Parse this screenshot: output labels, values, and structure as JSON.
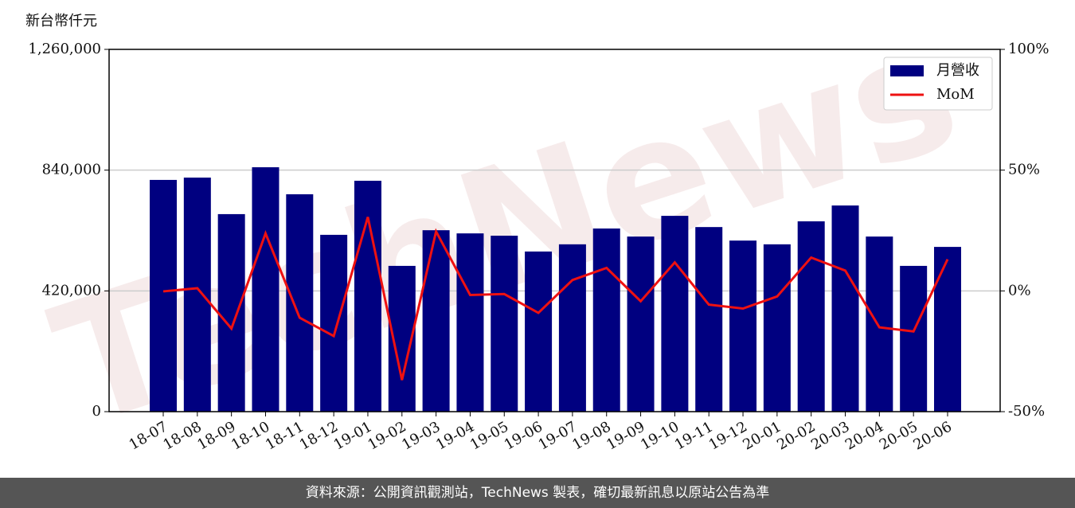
{
  "chart_data": {
    "type": "bar-line",
    "y_axis_label": "新台幣仟元",
    "watermark": "TechNews",
    "categories": [
      "18-07",
      "18-08",
      "18-09",
      "18-10",
      "18-11",
      "18-12",
      "19-01",
      "19-02",
      "19-03",
      "19-04",
      "19-05",
      "19-06",
      "19-07",
      "19-08",
      "19-09",
      "19-10",
      "19-11",
      "19-12",
      "20-01",
      "20-02",
      "20-03",
      "20-04",
      "20-05",
      "20-06"
    ],
    "series": [
      {
        "name": "月營收",
        "type": "bar",
        "color": "#000080",
        "values": [
          806000,
          814000,
          687000,
          850000,
          756000,
          615000,
          803000,
          507000,
          631000,
          620000,
          612000,
          557000,
          582000,
          637000,
          609000,
          681000,
          642000,
          595000,
          582000,
          662000,
          717000,
          609000,
          507000,
          573000
        ]
      },
      {
        "name": "MoM",
        "type": "line",
        "axis": "y2",
        "color": "#ee1111",
        "values": [
          -0.2,
          1.1,
          -15.6,
          23.8,
          -11.1,
          -18.7,
          30.6,
          -36.9,
          24.6,
          -1.7,
          -1.3,
          -9.1,
          4.5,
          9.5,
          -4.3,
          11.8,
          -5.7,
          -7.3,
          -2.3,
          13.8,
          8.4,
          -15.1,
          -16.8,
          13.1
        ]
      }
    ],
    "ylim": [
      0,
      1260000
    ],
    "yticks": [
      0,
      {
        "value": 420000,
        "label": "420,000"
      },
      {
        "value": 840000,
        "label": "840,000"
      },
      {
        "value": 1260000,
        "label": "1,260,000"
      }
    ],
    "y2lim": [
      -50,
      100
    ],
    "y2ticks": [
      {
        "value": -50,
        "label": "-50%"
      },
      {
        "value": 0,
        "label": "0%"
      },
      {
        "value": 50,
        "label": "50%"
      },
      {
        "value": 100,
        "label": "100%"
      }
    ],
    "grid": true,
    "legend": "upper right"
  },
  "footer": "資料來源：公開資訊觀測站，TechNews 製表，確切最新訊息以原站公告為準"
}
